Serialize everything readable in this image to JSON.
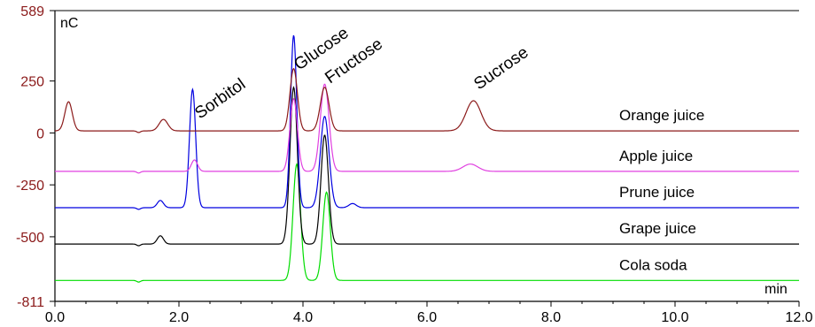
{
  "chart_data": {
    "type": "line",
    "xlabel": "min",
    "ylabel": "nC",
    "xlim": [
      0.0,
      12.0
    ],
    "ylim": [
      -811,
      589
    ],
    "x_ticks": [
      "0.0",
      "2.0",
      "4.0",
      "6.0",
      "8.0",
      "10.0",
      "12.0"
    ],
    "y_ticks": [
      "589",
      "250",
      "0",
      "-250",
      "-500",
      "-811"
    ],
    "grid": false,
    "colors": {
      "y_axis_labels": "#8b1a1a",
      "axis": "#000000"
    },
    "peak_labels": [
      {
        "text": "Sorbitol",
        "x": 2.25
      },
      {
        "text": "Glucose",
        "x": 3.85
      },
      {
        "text": "Fructose",
        "x": 4.35
      },
      {
        "text": "Sucrose",
        "x": 6.75
      }
    ],
    "series": [
      {
        "name": "Orange juice",
        "color": "#8b1a1a",
        "baseline": 10,
        "peaks": [
          {
            "x": 0.22,
            "height": 140,
            "width": 0.06
          },
          {
            "x": 1.75,
            "height": 55,
            "width": 0.07
          },
          {
            "x": 3.85,
            "height": 300,
            "width": 0.06
          },
          {
            "x": 4.35,
            "height": 210,
            "width": 0.07
          },
          {
            "x": 6.75,
            "height": 145,
            "width": 0.12
          }
        ]
      },
      {
        "name": "Apple juice",
        "color": "#e040e0",
        "baseline": -185,
        "peaks": [
          {
            "x": 2.25,
            "height": 55,
            "width": 0.05
          },
          {
            "x": 3.85,
            "height": 350,
            "width": 0.06
          },
          {
            "x": 4.35,
            "height": 420,
            "width": 0.07
          },
          {
            "x": 6.7,
            "height": 35,
            "width": 0.12
          }
        ]
      },
      {
        "name": "Prune juice",
        "color": "#0000e0",
        "baseline": -360,
        "peaks": [
          {
            "x": 1.7,
            "height": 35,
            "width": 0.05
          },
          {
            "x": 2.22,
            "height": 570,
            "width": 0.05
          },
          {
            "x": 3.85,
            "height": 830,
            "width": 0.05
          },
          {
            "x": 4.35,
            "height": 440,
            "width": 0.07
          },
          {
            "x": 4.8,
            "height": 20,
            "width": 0.06
          }
        ]
      },
      {
        "name": "Grape juice",
        "color": "#000000",
        "baseline": -535,
        "peaks": [
          {
            "x": 1.7,
            "height": 40,
            "width": 0.05
          },
          {
            "x": 3.85,
            "height": 755,
            "width": 0.06
          },
          {
            "x": 4.35,
            "height": 525,
            "width": 0.06
          }
        ]
      },
      {
        "name": "Cola soda",
        "color": "#00dd00",
        "baseline": -710,
        "peaks": [
          {
            "x": 3.9,
            "height": 560,
            "width": 0.06
          },
          {
            "x": 4.38,
            "height": 425,
            "width": 0.06
          }
        ]
      }
    ]
  }
}
